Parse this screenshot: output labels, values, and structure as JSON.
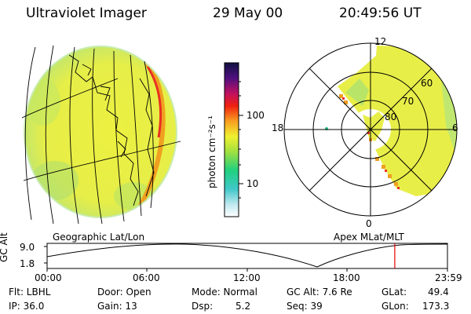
{
  "header": {
    "instrument": "Ultraviolet Imager",
    "date": "29 May 00",
    "time": "20:49:56 UT"
  },
  "colorbar": {
    "unit_label": "photon cm⁻²s⁻¹",
    "ticks": [
      "100",
      "10"
    ]
  },
  "polar_plot": {
    "mlt_labels": [
      "12",
      "18",
      "6",
      "0"
    ],
    "mlat_labels": [
      "60",
      "70",
      "80"
    ],
    "caption": "Apex MLat/MLT"
  },
  "globe_plot": {
    "caption": "Geographic Lat/Lon"
  },
  "timeline": {
    "ylabel": "GC Alt",
    "yticks": [
      "9.0",
      "1.8"
    ],
    "xticks": [
      "00:00",
      "06:00",
      "12:00",
      "18:00",
      "23:59"
    ],
    "marker_time_hours": 20.83
  },
  "status": {
    "flt": "Flt: LBHL",
    "ip": "IP: 36.0",
    "door": "Door: Open",
    "gain": "Gain: 13",
    "mode": "Mode: Normal",
    "dsp_label": "Dsp:",
    "dsp_value": "5.2",
    "gc_alt": "GC Alt: 7.6 Re",
    "seq": "Seq: 39",
    "glat_label": "GLat:",
    "glat_value": "49.4",
    "glon_label": "GLon:",
    "glon_value": "173.3"
  }
}
